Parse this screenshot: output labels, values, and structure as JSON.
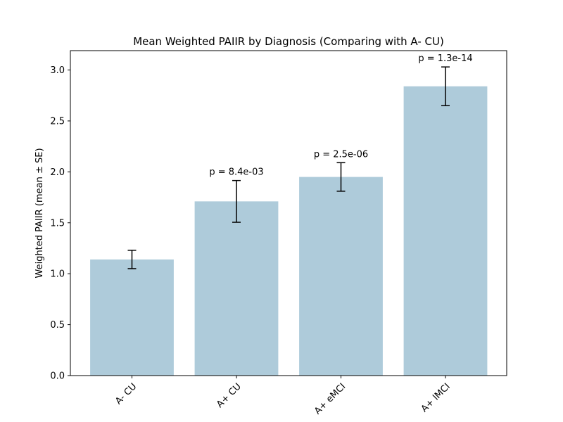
{
  "chart_data": {
    "type": "bar",
    "title": "Mean Weighted PAIIR by Diagnosis (Comparing with A- CU)",
    "xlabel": "",
    "ylabel": "Weighted PAIIR (mean ± SE)",
    "categories": [
      "A- CU",
      "A+ CU",
      "A+ eMCI",
      "A+ lMCI"
    ],
    "values": [
      1.14,
      1.71,
      1.95,
      2.84
    ],
    "errors": [
      0.09,
      0.205,
      0.14,
      0.19
    ],
    "annotations": [
      "",
      "p = 8.4e-03",
      "p = 2.5e-06",
      "p = 1.3e-14"
    ],
    "ylim": [
      0,
      3.19
    ],
    "yticks": [
      0.0,
      0.5,
      1.0,
      1.5,
      2.0,
      2.5,
      3.0
    ],
    "ytick_labels": [
      "0.0",
      "0.5",
      "1.0",
      "1.5",
      "2.0",
      "2.5",
      "3.0"
    ],
    "grid": false,
    "bar_color": "#aecbda",
    "error_color": "#000000"
  }
}
